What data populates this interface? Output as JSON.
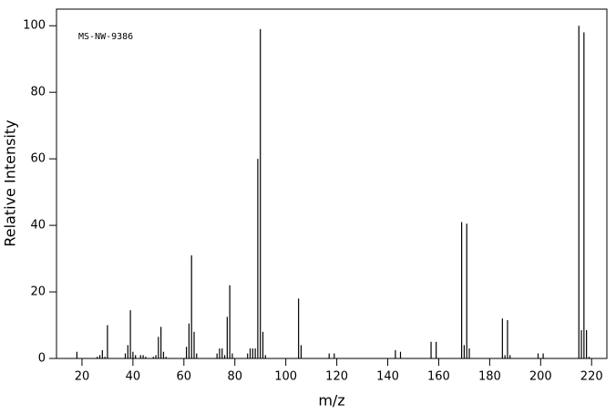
{
  "chart_data": {
    "type": "stick",
    "annotation": "MS-NW-9386",
    "x_label": "m/z",
    "y_label": "Relative Intensity",
    "color": "#000000",
    "x": [
      18,
      26,
      27,
      28,
      29,
      30,
      37,
      38,
      39,
      40,
      41,
      43,
      44,
      45,
      48,
      49,
      50,
      51,
      52,
      53,
      61,
      62,
      63,
      64,
      65,
      73,
      74,
      75,
      76,
      77,
      78,
      79,
      85,
      86,
      87,
      88,
      89,
      90,
      91,
      92,
      105,
      106,
      117,
      119,
      143,
      145,
      157,
      159,
      169,
      170,
      171,
      172,
      185,
      186,
      187,
      188,
      199,
      201,
      215,
      216,
      217,
      218,
      219
    ],
    "values": [
      2,
      0.5,
      1,
      2.5,
      0.5,
      10,
      1.5,
      4,
      14.5,
      2,
      1,
      1,
      1,
      0.5,
      0.5,
      1,
      6.5,
      9.5,
      2,
      0.5,
      3.5,
      10.5,
      31,
      8,
      1.5,
      1.5,
      3,
      3,
      1,
      12.5,
      22,
      1.5,
      1.5,
      3,
      3,
      3,
      60,
      99,
      8,
      1,
      18,
      4,
      1.5,
      1.5,
      2.5,
      2,
      5,
      5,
      41,
      4,
      40.5,
      3,
      12,
      1,
      11.5,
      1,
      1.5,
      1.5,
      100,
      8.5,
      98,
      8.5,
      0.5
    ],
    "xlim": [
      10,
      226
    ],
    "ylim": [
      0,
      105
    ],
    "xticks": [
      20,
      40,
      60,
      80,
      100,
      120,
      140,
      160,
      180,
      200,
      220
    ],
    "yticks": [
      0,
      20,
      40,
      60,
      80,
      100
    ]
  }
}
